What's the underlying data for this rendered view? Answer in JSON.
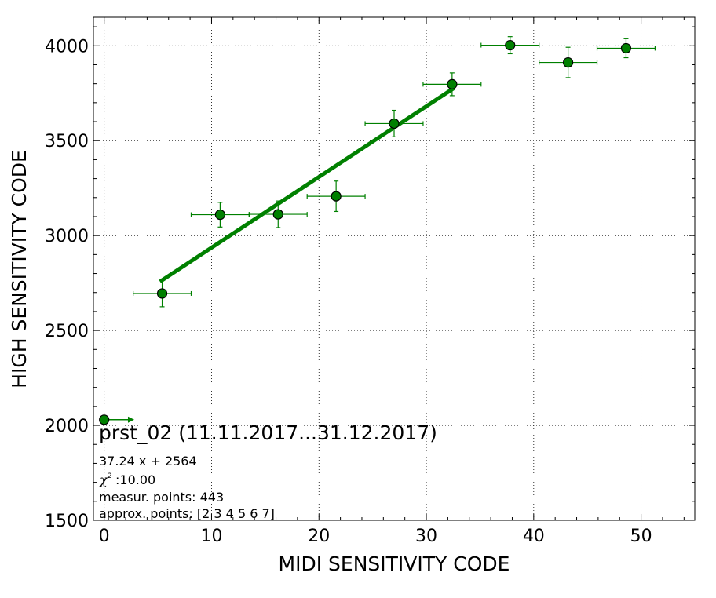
{
  "chart_data": {
    "type": "scatter",
    "xlabel": "MIDI SENSITIVITY CODE",
    "ylabel": "HIGH SENSITIVITY CODE",
    "xlim": [
      -1,
      55
    ],
    "ylim": [
      1500,
      4150
    ],
    "xticks": [
      "0",
      "10",
      "20",
      "30",
      "40",
      "50"
    ],
    "yticks": [
      "1500",
      "2000",
      "2500",
      "3000",
      "3500",
      "4000"
    ],
    "grid": true,
    "colors": {
      "series": "#008000",
      "marker_edge": "#000000"
    },
    "points": [
      {
        "x": 5.4,
        "y": 2695,
        "xerr": 2.7,
        "yerr": 70
      },
      {
        "x": 10.8,
        "y": 3110,
        "xerr": 2.7,
        "yerr": 65
      },
      {
        "x": 16.2,
        "y": 3112,
        "xerr": 2.7,
        "yerr": 70
      },
      {
        "x": 21.6,
        "y": 3207,
        "xerr": 2.7,
        "yerr": 80
      },
      {
        "x": 27.0,
        "y": 3590,
        "xerr": 2.7,
        "yerr": 70
      },
      {
        "x": 32.4,
        "y": 3797,
        "xerr": 2.7,
        "yerr": 60
      },
      {
        "x": 37.8,
        "y": 4003,
        "xerr": 2.7,
        "yerr": 45
      },
      {
        "x": 43.2,
        "y": 3912,
        "xerr": 2.7,
        "yerr": 80
      },
      {
        "x": 48.6,
        "y": 3987,
        "xerr": 2.7,
        "yerr": 50
      }
    ],
    "fit_line": {
      "slope": 37.24,
      "intercept": 2564,
      "x_range": [
        5.2,
        32.6
      ]
    },
    "legend_marker": {
      "x": 0,
      "y": 2030,
      "arrow_to_x": 2.8
    },
    "annotation": {
      "title": "prst_02 (11.11.2017...31.12.2017)",
      "equation": "37.24 x + 2564",
      "chi2": ":10.00",
      "measured": "measur. points: 443",
      "approx": "approx. points: [2 3 4 5 6 7]"
    }
  }
}
